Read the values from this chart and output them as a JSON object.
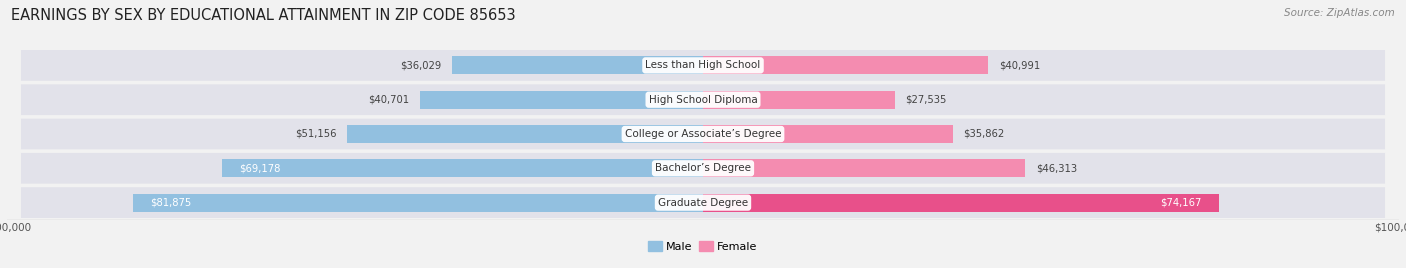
{
  "title": "EARNINGS BY SEX BY EDUCATIONAL ATTAINMENT IN ZIP CODE 85653",
  "source": "Source: ZipAtlas.com",
  "categories": [
    "Less than High School",
    "High School Diploma",
    "College or Associate’s Degree",
    "Bachelor’s Degree",
    "Graduate Degree"
  ],
  "male_values": [
    36029,
    40701,
    51156,
    69178,
    81875
  ],
  "female_values": [
    40991,
    27535,
    35862,
    46313,
    74167
  ],
  "male_color": "#92C0E0",
  "female_colors": [
    "#F48CB0",
    "#F48CB0",
    "#F48CB0",
    "#F48CB0",
    "#E8508A"
  ],
  "max_value": 100000,
  "background_color": "#f2f2f2",
  "row_bg_light": "#e8e8ee",
  "row_bg_dark": "#dcdce4",
  "title_fontsize": 10.5,
  "bar_height": 0.52,
  "figsize": [
    14.06,
    2.68
  ]
}
